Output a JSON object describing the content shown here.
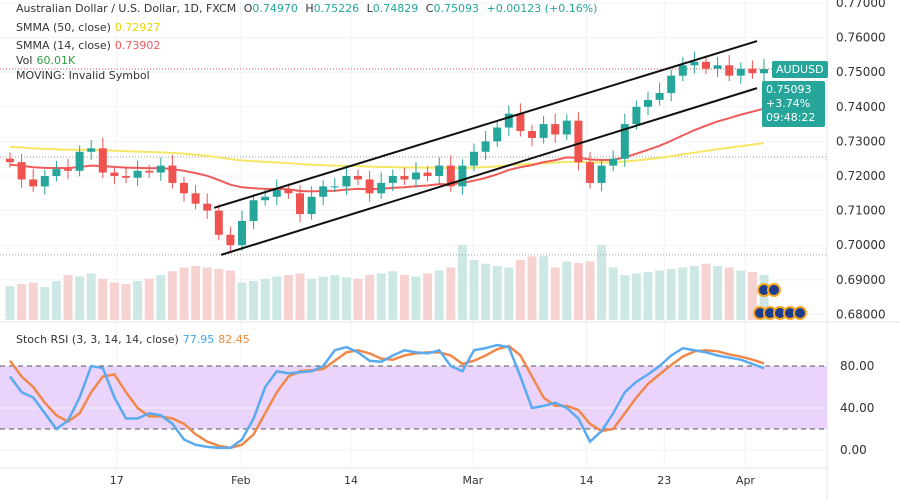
{
  "header": {
    "title": "Australian Dollar / U.S. Dollar, 1D, FXCM",
    "o_label": "O",
    "o": "0.74970",
    "h_label": "H",
    "h": "0.75226",
    "l_label": "L",
    "l": "0.74829",
    "c_label": "C",
    "c": "0.75093",
    "change": "+0.00123 (+0.16%)"
  },
  "indicators": {
    "smma50_label": "SMMA (50, close)",
    "smma50_value": "0.72927",
    "smma14_label": "SMMA (14, close)",
    "smma14_value": "0.73902",
    "vol_label": "Vol",
    "vol_value": "60.01K",
    "moving_label": "MOVING: Invalid Symbol",
    "stoch_label": "Stoch RSI (3, 3, 14, 14, close)",
    "stoch_k_value": "77.95",
    "stoch_d_value": "82.45"
  },
  "price_tag": {
    "symbol": "AUDUSD",
    "price": "0.75093",
    "change_pct": "+3.74%",
    "countdown": "09:48:22"
  },
  "colors": {
    "up": "#26a69a",
    "down": "#ef5350",
    "smma50": "#f5e663",
    "smma14": "#f05a5a",
    "stoch_k": "#5aaaf0",
    "stoch_d": "#f0884a",
    "band": "#e6cdfa",
    "vol_up": "#cde8e4",
    "vol_down": "#f6d3d1"
  },
  "chart_data": {
    "type": "candlestick",
    "price_axis": {
      "ticks": [
        "0.77000",
        "0.76000",
        "0.75000",
        "0.74000",
        "0.73000",
        "0.72000",
        "0.71000",
        "0.70000",
        "0.69000",
        "0.68000"
      ],
      "range": [
        0.6793,
        0.7709
      ]
    },
    "time_axis": [
      {
        "label": "17",
        "index": 9.2
      },
      {
        "label": "Feb",
        "index": 19.9
      },
      {
        "label": "14",
        "index": 29.4
      },
      {
        "label": "Mar",
        "index": 39.9
      },
      {
        "label": "14",
        "index": 49.7
      },
      {
        "label": "23",
        "index": 56.4
      },
      {
        "label": "Apr",
        "index": 63.4
      }
    ],
    "close": [
      0.724,
      0.719,
      0.717,
      0.72,
      0.722,
      0.7215,
      0.727,
      0.728,
      0.721,
      0.72,
      0.7195,
      0.7215,
      0.721,
      0.723,
      0.718,
      0.715,
      0.712,
      0.71,
      0.703,
      0.7,
      0.707,
      0.713,
      0.714,
      0.716,
      0.715,
      0.709,
      0.714,
      0.717,
      0.717,
      0.72,
      0.719,
      0.715,
      0.718,
      0.72,
      0.719,
      0.721,
      0.72,
      0.723,
      0.717,
      0.723,
      0.727,
      0.73,
      0.734,
      0.738,
      0.733,
      0.731,
      0.735,
      0.732,
      0.736,
      0.724,
      0.718,
      0.723,
      0.725,
      0.735,
      0.74,
      0.742,
      0.744,
      0.749,
      0.752,
      0.753,
      0.751,
      0.752,
      0.749,
      0.751,
      0.7497,
      0.7509
    ],
    "volume_k": [
      45,
      48,
      50,
      44,
      52,
      60,
      58,
      62,
      55,
      50,
      48,
      52,
      55,
      60,
      65,
      70,
      72,
      70,
      68,
      66,
      50,
      52,
      55,
      58,
      60,
      62,
      55,
      58,
      60,
      57,
      55,
      60,
      62,
      65,
      60,
      58,
      62,
      66,
      70,
      100,
      80,
      75,
      72,
      70,
      80,
      85,
      85,
      70,
      78,
      76,
      78,
      100,
      70,
      60,
      62,
      64,
      66,
      68,
      70,
      72,
      75,
      72,
      70,
      66,
      64,
      60
    ],
    "smma50": {
      "period": 50,
      "last": 0.72927
    },
    "smma14": {
      "period": 14,
      "last": 0.73902
    },
    "channel": [
      {
        "from": [
          17.6,
          0.7108
        ],
        "to": [
          64.4,
          0.759
        ]
      },
      {
        "from": [
          18.2,
          0.6972
        ],
        "to": [
          64.4,
          0.7454
        ]
      }
    ],
    "stoch_axis": [
      "80.00",
      "40.00",
      "0.00"
    ],
    "stoch_k": [
      70,
      55,
      50,
      35,
      20,
      28,
      50,
      80,
      78,
      50,
      30,
      30,
      35,
      33,
      25,
      10,
      5,
      3,
      2,
      2,
      10,
      30,
      60,
      75,
      73,
      74,
      75,
      80,
      95,
      98,
      93,
      85,
      84,
      90,
      95,
      93,
      92,
      95,
      80,
      75,
      95,
      97,
      100,
      98,
      70,
      40,
      42,
      45,
      40,
      30,
      8,
      18,
      35,
      55,
      65,
      72,
      80,
      90,
      97,
      95,
      93,
      90,
      88,
      86,
      82,
      77.95
    ],
    "stoch_d": [
      85,
      70,
      60,
      45,
      33,
      27,
      35,
      55,
      70,
      72,
      55,
      40,
      32,
      32,
      30,
      25,
      15,
      8,
      4,
      2,
      5,
      15,
      35,
      55,
      70,
      75,
      76,
      77,
      85,
      93,
      95,
      92,
      87,
      86,
      90,
      92,
      93,
      93,
      90,
      82,
      85,
      90,
      96,
      99,
      90,
      70,
      50,
      42,
      42,
      38,
      25,
      18,
      20,
      35,
      50,
      63,
      72,
      81,
      89,
      94,
      95,
      94,
      91,
      89,
      86,
      82.45
    ]
  }
}
